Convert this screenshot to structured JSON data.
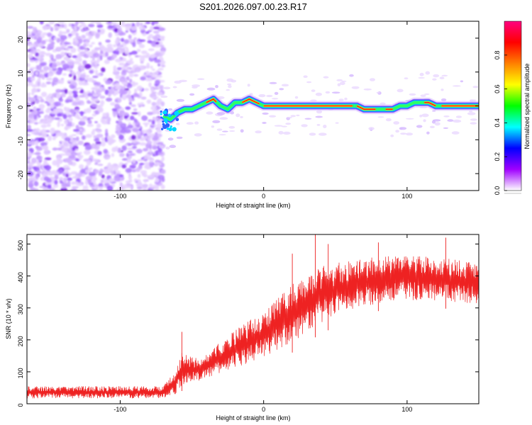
{
  "title": "S201.2026.097.00.23.R17",
  "chart_data": [
    {
      "type": "heatmap",
      "xlabel": "Height of straight line (km)",
      "ylabel": "Frequency (Hz)",
      "xlim": [
        -165,
        150
      ],
      "ylim": [
        -25,
        25
      ],
      "xticks": [
        -100,
        0,
        100
      ],
      "yticks": [
        20,
        10,
        0,
        -10,
        -20
      ],
      "noise_region_x": [
        -165,
        -70
      ],
      "ridge": [
        {
          "x": -70,
          "y": -3
        },
        {
          "x": -65,
          "y": -4
        },
        {
          "x": -60,
          "y": -2
        },
        {
          "x": -55,
          "y": -1
        },
        {
          "x": -50,
          "y": -1
        },
        {
          "x": -45,
          "y": 0
        },
        {
          "x": -40,
          "y": 1
        },
        {
          "x": -35,
          "y": 2
        },
        {
          "x": -30,
          "y": 0
        },
        {
          "x": -25,
          "y": -1
        },
        {
          "x": -20,
          "y": 1
        },
        {
          "x": -15,
          "y": 1
        },
        {
          "x": -10,
          "y": 2
        },
        {
          "x": -5,
          "y": 1
        },
        {
          "x": 0,
          "y": 0
        },
        {
          "x": 20,
          "y": 0
        },
        {
          "x": 40,
          "y": 0
        },
        {
          "x": 60,
          "y": 0
        },
        {
          "x": 65,
          "y": 0
        },
        {
          "x": 70,
          "y": -1
        },
        {
          "x": 80,
          "y": -1
        },
        {
          "x": 85,
          "y": -1
        },
        {
          "x": 90,
          "y": -1
        },
        {
          "x": 95,
          "y": 0
        },
        {
          "x": 100,
          "y": 0
        },
        {
          "x": 105,
          "y": 1
        },
        {
          "x": 115,
          "y": 1
        },
        {
          "x": 120,
          "y": 0
        },
        {
          "x": 135,
          "y": 0
        },
        {
          "x": 150,
          "y": 0
        }
      ],
      "colorbar": {
        "label": "Normalized spectral amplitude",
        "range": [
          0,
          1
        ],
        "ticks": [
          0.0,
          0.2,
          0.4,
          0.6,
          0.8
        ],
        "tick_labels": [
          "0.0",
          "0.2",
          "0.4",
          "0.6",
          "0.8"
        ],
        "colors": [
          "#ffffff",
          "#a000ff",
          "#0000ff",
          "#00ffff",
          "#00ff00",
          "#ffff00",
          "#ff8000",
          "#ff0000",
          "#ff0080"
        ]
      }
    },
    {
      "type": "line",
      "xlabel": "Height of straight line (km)",
      "ylabel": "SNR (10 * v/v)",
      "xlim": [
        -165,
        150
      ],
      "ylim": [
        0,
        530
      ],
      "xticks": [
        -100,
        0,
        100
      ],
      "yticks": [
        0,
        100,
        200,
        300,
        400,
        500
      ],
      "color": "#ee2222",
      "envelope": [
        {
          "x": -165,
          "lo": 10,
          "hi": 55
        },
        {
          "x": -70,
          "lo": 10,
          "hi": 55
        },
        {
          "x": -62,
          "lo": 15,
          "hi": 100
        },
        {
          "x": -57,
          "lo": 40,
          "hi": 160
        },
        {
          "x": -45,
          "lo": 60,
          "hi": 140
        },
        {
          "x": -20,
          "lo": 90,
          "hi": 230
        },
        {
          "x": 0,
          "lo": 120,
          "hi": 290
        },
        {
          "x": 20,
          "lo": 160,
          "hi": 380
        },
        {
          "x": 40,
          "lo": 220,
          "hi": 430
        },
        {
          "x": 60,
          "lo": 260,
          "hi": 450
        },
        {
          "x": 80,
          "lo": 290,
          "hi": 460
        },
        {
          "x": 100,
          "lo": 300,
          "hi": 465
        },
        {
          "x": 120,
          "lo": 300,
          "hi": 460
        },
        {
          "x": 150,
          "lo": 290,
          "hi": 440
        }
      ],
      "peaks": [
        {
          "x": -57,
          "y": 225
        },
        {
          "x": 20,
          "y": 470
        },
        {
          "x": 36,
          "y": 535
        },
        {
          "x": 45,
          "y": 500
        },
        {
          "x": 80,
          "y": 505
        },
        {
          "x": 127,
          "y": 520
        }
      ]
    }
  ]
}
